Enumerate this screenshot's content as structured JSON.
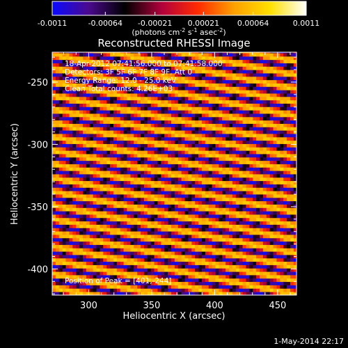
{
  "chart_data": {
    "type": "heatmap",
    "title": "Reconstructed RHESSI Image",
    "xlabel": "Heliocentric X (arcsec)",
    "ylabel": "Heliocentric Y (arcsec)",
    "xlim": [
      271,
      465
    ],
    "ylim": [
      -421,
      -226
    ],
    "x_ticks": [
      300,
      350,
      400,
      450
    ],
    "y_ticks": [
      -250,
      -300,
      -350,
      -400
    ],
    "colorbar": {
      "range": [
        -0.0011,
        0.0011
      ],
      "tick_labels": [
        "-0.0011",
        "-0.00064",
        "-0.00021",
        "0.00021",
        "0.00064",
        "0.0011"
      ],
      "tick_values": [
        -0.0011,
        -0.00064,
        -0.00021,
        0.00021,
        0.00064,
        0.0011
      ],
      "unit_main": "(photons cm",
      "unit_exp1": "-2",
      "unit_mid1": " s",
      "unit_exp2": "-1",
      "unit_mid2": " asec",
      "unit_exp3": "-2",
      "unit_end": ")",
      "colors": [
        "#0a0aff",
        "#4b0a8c",
        "#000000",
        "#b0003c",
        "#ff2a00",
        "#ffa000",
        "#ffe000",
        "#ffffff"
      ]
    },
    "stripes": {
      "slope": -0.2,
      "period_arcsec": 11,
      "cell_arcsec": 2.7
    },
    "annotations": {
      "time": "18-Apr-2012 07:41:56.000 to 07:41:58.000",
      "detectors": "Detectors: 3F 5F 6F 7F 8F 9F, Att 0",
      "energy": "Energy Range: 12.0 - 25.0 keV",
      "clean": "Clean     Total counts: 4.26E+03",
      "peak": "Position of Peak = [401,-244]"
    }
  },
  "footer": {
    "timestamp": "1-May-2014 22:17"
  }
}
